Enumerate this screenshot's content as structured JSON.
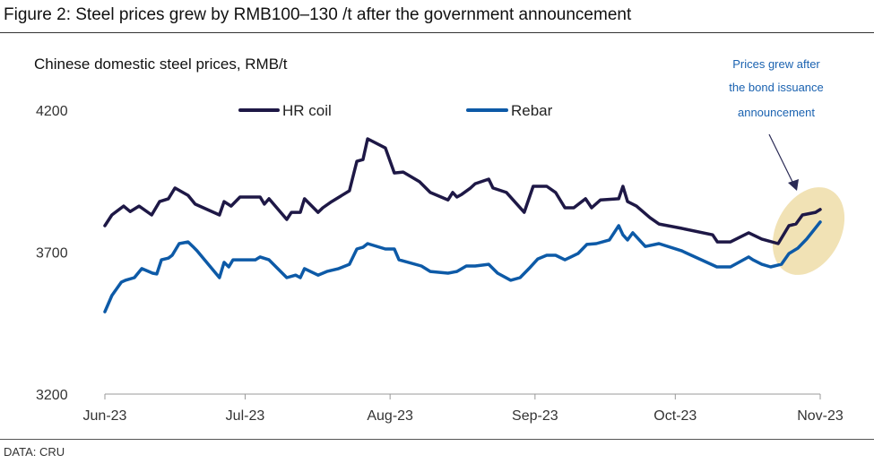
{
  "title": "Figure 2: Steel prices grew by RMB100–130 /t after the government announcement",
  "source": "DATA: CRU",
  "chart_data": {
    "type": "line",
    "title": "Figure 2: Steel prices grew by RMB100–130 /t after the government announcement",
    "ylabel": "Chinese domestic steel prices, RMB/t",
    "xlabel": "",
    "x_unit": "days from Jun-23 tick",
    "ylim": [
      3200,
      4200
    ],
    "yticks": [
      3200,
      3700,
      4200
    ],
    "xlim": [
      0,
      153
    ],
    "xticks": [
      {
        "x": 0,
        "label": "Jun-23"
      },
      {
        "x": 30,
        "label": "Jul-23"
      },
      {
        "x": 61,
        "label": "Aug-23"
      },
      {
        "x": 92,
        "label": "Sep-23"
      },
      {
        "x": 122,
        "label": "Oct-23"
      },
      {
        "x": 153,
        "label": "Nov-23"
      }
    ],
    "grid": false,
    "legend_position": "top-center",
    "annotation": {
      "lines": [
        "Prices grew after",
        "the bond issuance",
        "announcement"
      ],
      "highlight_x": [
        146,
        153
      ]
    },
    "series": [
      {
        "name": "HR coil",
        "color": "#1e1846",
        "points": [
          [
            0,
            3793
          ],
          [
            1.5,
            3831
          ],
          [
            4,
            3862
          ],
          [
            5.4,
            3843
          ],
          [
            7.3,
            3862
          ],
          [
            10,
            3831
          ],
          [
            11.7,
            3878
          ],
          [
            13.6,
            3888
          ],
          [
            15,
            3926
          ],
          [
            17.8,
            3900
          ],
          [
            19.3,
            3869
          ],
          [
            24.5,
            3831
          ],
          [
            25.5,
            3878
          ],
          [
            27,
            3862
          ],
          [
            28.9,
            3894
          ],
          [
            33.2,
            3894
          ],
          [
            34.1,
            3869
          ],
          [
            35.1,
            3888
          ],
          [
            38.9,
            3815
          ],
          [
            39.9,
            3840
          ],
          [
            41.8,
            3840
          ],
          [
            42.7,
            3888
          ],
          [
            45.6,
            3840
          ],
          [
            46.6,
            3856
          ],
          [
            48.5,
            3878
          ],
          [
            52.3,
            3916
          ],
          [
            53.9,
            4020
          ],
          [
            55.2,
            4026
          ],
          [
            56.2,
            4099
          ],
          [
            60,
            4067
          ],
          [
            61.9,
            3979
          ],
          [
            63.8,
            3982
          ],
          [
            67.3,
            3948
          ],
          [
            69.6,
            3910
          ],
          [
            73.4,
            3884
          ],
          [
            74.4,
            3910
          ],
          [
            75.3,
            3894
          ],
          [
            76.3,
            3903
          ],
          [
            78.2,
            3926
          ],
          [
            79.2,
            3941
          ],
          [
            82.1,
            3957
          ],
          [
            83,
            3926
          ],
          [
            85.9,
            3910
          ],
          [
            89.7,
            3840
          ],
          [
            91.6,
            3932
          ],
          [
            94.5,
            3932
          ],
          [
            96.4,
            3910
          ],
          [
            98.4,
            3856
          ],
          [
            100.3,
            3856
          ],
          [
            102.8,
            3888
          ],
          [
            104.1,
            3856
          ],
          [
            106,
            3884
          ],
          [
            109.9,
            3888
          ],
          [
            110.8,
            3932
          ],
          [
            111.8,
            3878
          ],
          [
            113.7,
            3862
          ],
          [
            116.6,
            3821
          ],
          [
            118.5,
            3799
          ],
          [
            123.3,
            3784
          ],
          [
            130,
            3761
          ],
          [
            131,
            3736
          ],
          [
            133.8,
            3736
          ],
          [
            137.7,
            3768
          ],
          [
            140.5,
            3746
          ],
          [
            144,
            3730
          ],
          [
            146.3,
            3793
          ],
          [
            147.8,
            3799
          ],
          [
            149.2,
            3831
          ],
          [
            152,
            3840
          ],
          [
            153,
            3850
          ]
        ]
      },
      {
        "name": "Rebar",
        "color": "#0d5aa7",
        "points": [
          [
            0,
            3490
          ],
          [
            1.5,
            3547
          ],
          [
            3.5,
            3594
          ],
          [
            4.4,
            3601
          ],
          [
            6.3,
            3610
          ],
          [
            7.9,
            3642
          ],
          [
            10.2,
            3626
          ],
          [
            11.1,
            3623
          ],
          [
            12.1,
            3673
          ],
          [
            13.6,
            3679
          ],
          [
            14.4,
            3689
          ],
          [
            15.9,
            3730
          ],
          [
            17.8,
            3736
          ],
          [
            18.8,
            3720
          ],
          [
            19.7,
            3705
          ],
          [
            24.5,
            3610
          ],
          [
            25.5,
            3664
          ],
          [
            26.5,
            3648
          ],
          [
            27.4,
            3673
          ],
          [
            32.2,
            3673
          ],
          [
            33.2,
            3683
          ],
          [
            35.1,
            3673
          ],
          [
            38.9,
            3610
          ],
          [
            40.8,
            3619
          ],
          [
            41.8,
            3610
          ],
          [
            42.7,
            3642
          ],
          [
            45.6,
            3619
          ],
          [
            47.5,
            3632
          ],
          [
            50,
            3642
          ],
          [
            52.3,
            3657
          ],
          [
            53.9,
            3711
          ],
          [
            55.2,
            3717
          ],
          [
            56.2,
            3730
          ],
          [
            60,
            3711
          ],
          [
            61.9,
            3711
          ],
          [
            62.9,
            3673
          ],
          [
            67.7,
            3651
          ],
          [
            69.6,
            3632
          ],
          [
            73.4,
            3626
          ],
          [
            75.3,
            3632
          ],
          [
            77.3,
            3651
          ],
          [
            79.2,
            3651
          ],
          [
            82.1,
            3657
          ],
          [
            84,
            3626
          ],
          [
            86.8,
            3601
          ],
          [
            88.8,
            3610
          ],
          [
            90.7,
            3642
          ],
          [
            92.6,
            3676
          ],
          [
            94.5,
            3689
          ],
          [
            96.4,
            3689
          ],
          [
            98.4,
            3673
          ],
          [
            101.2,
            3695
          ],
          [
            103.1,
            3727
          ],
          [
            105.1,
            3730
          ],
          [
            107.9,
            3743
          ],
          [
            109.9,
            3793
          ],
          [
            110.8,
            3761
          ],
          [
            111.8,
            3743
          ],
          [
            112.9,
            3768
          ],
          [
            115.6,
            3720
          ],
          [
            118.5,
            3730
          ],
          [
            123.3,
            3705
          ],
          [
            130.9,
            3648
          ],
          [
            133.8,
            3648
          ],
          [
            137.7,
            3683
          ],
          [
            138.6,
            3673
          ],
          [
            140.5,
            3657
          ],
          [
            142.4,
            3648
          ],
          [
            144.7,
            3657
          ],
          [
            146.3,
            3695
          ],
          [
            148.2,
            3714
          ],
          [
            150.1,
            3746
          ],
          [
            153,
            3806
          ]
        ]
      }
    ]
  }
}
